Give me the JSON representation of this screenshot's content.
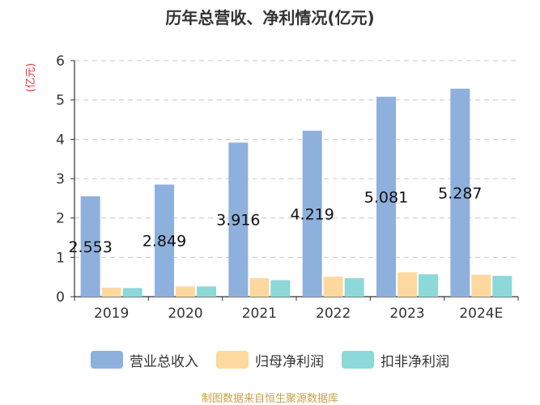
{
  "chart_data": {
    "type": "bar",
    "title": "历年总营收、净利情况(亿元)",
    "ylabel": "(亿元)",
    "xlabel": "",
    "categories": [
      "2019",
      "2020",
      "2021",
      "2022",
      "2023",
      "2024E"
    ],
    "ylim": [
      0,
      6
    ],
    "yticks": [
      0,
      1,
      2,
      3,
      4,
      5,
      6
    ],
    "grid": true,
    "legend_position": "bottom",
    "series": [
      {
        "name": "营业总收入",
        "color": "#8eb0dc",
        "values": [
          2.553,
          2.849,
          3.916,
          4.219,
          5.081,
          5.287
        ],
        "labels": [
          "2.553",
          "2.849",
          "3.916",
          "4.219",
          "5.081",
          "5.287"
        ]
      },
      {
        "name": "归母净利润",
        "color": "#fdd9a0",
        "values": [
          0.23,
          0.26,
          0.47,
          0.51,
          0.62,
          0.56
        ]
      },
      {
        "name": "扣非净利润",
        "color": "#8dd8d8",
        "values": [
          0.22,
          0.26,
          0.42,
          0.47,
          0.57,
          0.53
        ]
      }
    ]
  },
  "source_text": "制图数据来自恒生聚源数据库",
  "ylabel_color": "#e03030"
}
